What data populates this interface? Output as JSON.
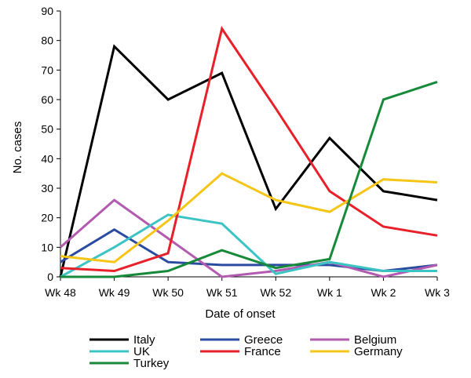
{
  "chart_data": {
    "type": "line",
    "title": "",
    "xlabel": "Date of onset",
    "ylabel": "No. cases",
    "ylim": [
      0,
      90
    ],
    "yticks": [
      0,
      10,
      20,
      30,
      40,
      50,
      60,
      70,
      80,
      90
    ],
    "grid": false,
    "legend_position": "bottom",
    "categories": [
      "Wk 48",
      "Wk 49",
      "Wk 50",
      "Wk 51",
      "Wk 52",
      "Wk 1",
      "Wk 2",
      "Wk 3"
    ],
    "series": [
      {
        "name": "Italy",
        "color": "#000000",
        "values": [
          0,
          78,
          60,
          69,
          23,
          47,
          29,
          26
        ]
      },
      {
        "name": "Greece",
        "color": "#2a4ba0",
        "values": [
          5,
          16,
          5,
          4,
          4,
          4,
          2,
          4
        ]
      },
      {
        "name": "Belgium",
        "color": "#b35bb0",
        "values": [
          10,
          26,
          13,
          0,
          2,
          5,
          0,
          4
        ]
      },
      {
        "name": "UK",
        "color": "#3cc4c4",
        "values": [
          0,
          10,
          21,
          18,
          1,
          5,
          2,
          2
        ]
      },
      {
        "name": "France",
        "color": "#e8202a",
        "values": [
          3,
          2,
          8,
          84,
          57,
          29,
          17,
          14
        ]
      },
      {
        "name": "Germany",
        "color": "#f5c518",
        "values": [
          7,
          5,
          19,
          35,
          26,
          22,
          33,
          32
        ]
      },
      {
        "name": "Turkey",
        "color": "#178a3a",
        "values": [
          0,
          0,
          2,
          9,
          3,
          6,
          60,
          66
        ]
      }
    ]
  }
}
